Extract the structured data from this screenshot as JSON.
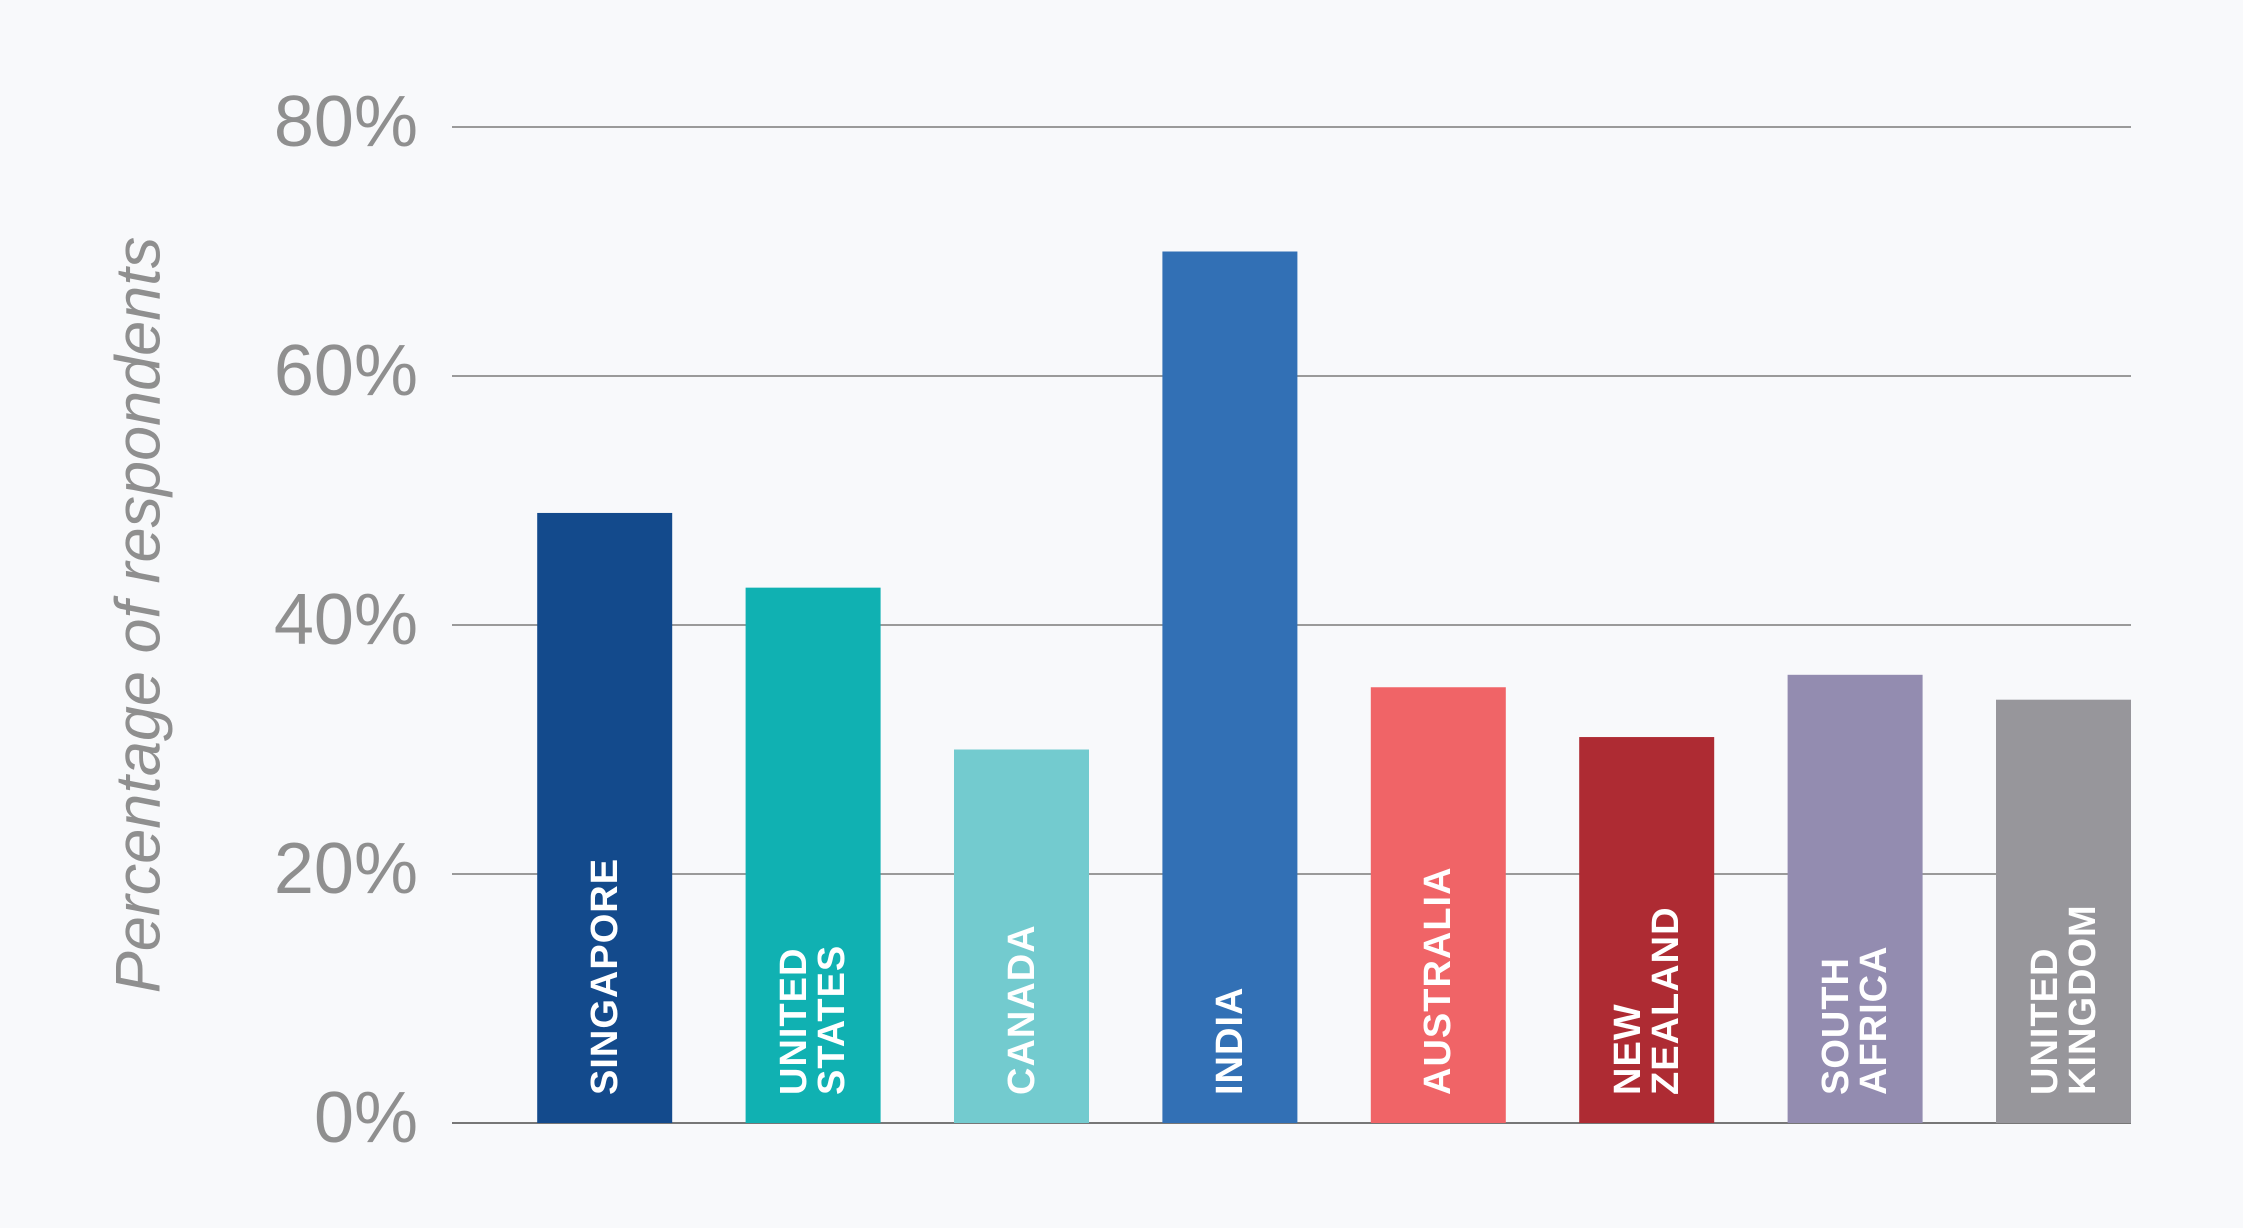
{
  "chart_data": {
    "type": "bar",
    "y_axis_label": "Percentage of respondents",
    "categories": [
      "SINGAPORE",
      "UNITED STATES",
      "CANADA",
      "INDIA",
      "AUSTRALIA",
      "NEW ZEALAND",
      "SOUTH AFRICA",
      "UNITED KINGDOM"
    ],
    "values": [
      49,
      43,
      30,
      70,
      35,
      31,
      36,
      34
    ],
    "colors": [
      "#134a8c",
      "#10b1b2",
      "#73cbcf",
      "#3270b5",
      "#f06467",
      "#ae2b33",
      "#938cb0",
      "#97969b"
    ],
    "ylim": [
      0,
      80
    ],
    "yticks": [
      {
        "value": 0,
        "label": "0%"
      },
      {
        "value": 20,
        "label": "20%"
      },
      {
        "value": 40,
        "label": "40%"
      },
      {
        "value": 60,
        "label": "60%"
      },
      {
        "value": 80,
        "label": "80%"
      }
    ],
    "grid": true
  }
}
